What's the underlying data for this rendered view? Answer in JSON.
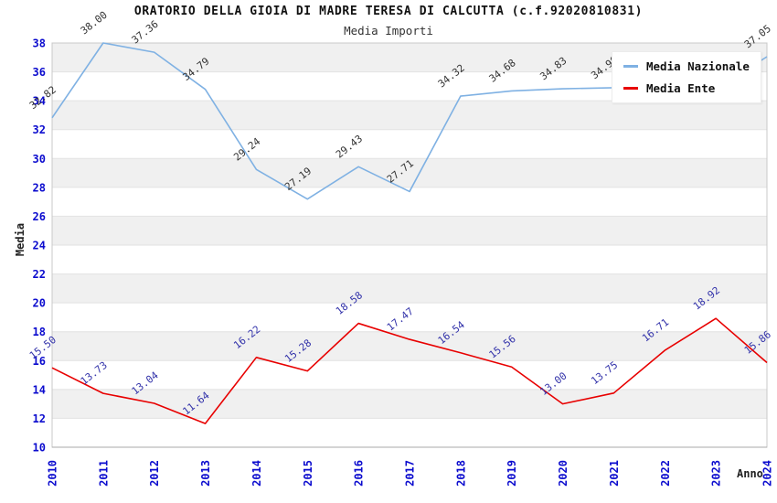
{
  "chart_data": {
    "type": "line",
    "title": "ORATORIO DELLA GIOIA DI MADRE TERESA DI CALCUTTA (c.f.92020810831)",
    "subtitle": "Media Importi",
    "xlabel": "Anno",
    "ylabel": "Media",
    "x": [
      2010,
      2011,
      2012,
      2013,
      2014,
      2015,
      2016,
      2017,
      2018,
      2019,
      2020,
      2021,
      2022,
      2023,
      2024
    ],
    "yticks": [
      10,
      12,
      14,
      16,
      18,
      20,
      22,
      24,
      26,
      28,
      30,
      32,
      34,
      36,
      38
    ],
    "ylim": [
      10,
      38
    ],
    "ytick_step": 2,
    "grid": true,
    "legend_position": "top-right",
    "series": [
      {
        "name": "Media Nazionale",
        "color": "#7fb1e3",
        "label_color": "#333333",
        "values": [
          32.82,
          38.0,
          37.36,
          34.79,
          29.24,
          27.19,
          29.43,
          27.71,
          34.32,
          34.68,
          34.83,
          34.9,
          34.9,
          34.8,
          37.05
        ]
      },
      {
        "name": "Media Ente",
        "color": "#e80000",
        "label_color": "#3333aa",
        "values": [
          15.5,
          13.73,
          13.04,
          11.64,
          16.22,
          15.28,
          18.58,
          17.47,
          16.54,
          15.56,
          13.0,
          13.75,
          16.71,
          18.92,
          15.86
        ]
      }
    ],
    "colors": {
      "tick_label": "#0b0bce",
      "band": "#f0f0f0",
      "grid": "#e2e2e2",
      "border": "#c8c8c8",
      "axis_line": "#aaaaaa",
      "background": "#ffffff"
    }
  }
}
